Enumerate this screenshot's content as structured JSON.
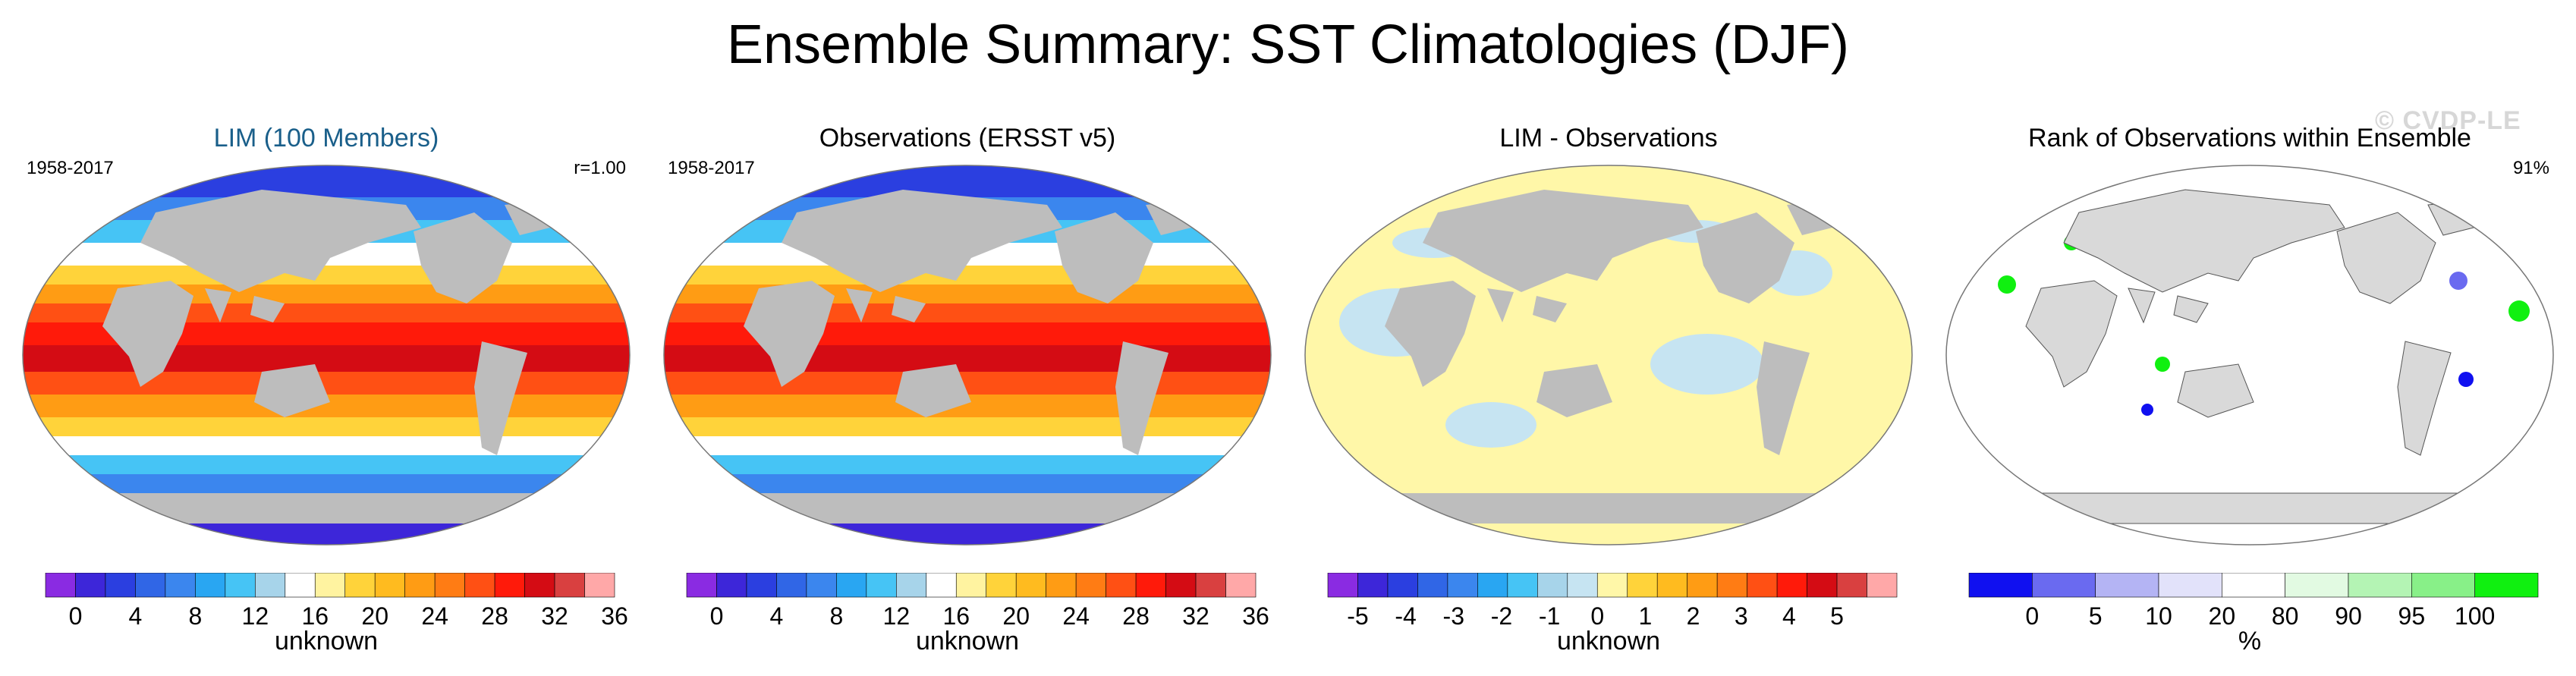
{
  "title": "Ensemble Summary: SST Climatologies (DJF)",
  "watermark": "© CVDP-LE",
  "panels": [
    {
      "title": "LIM (100 Members)",
      "left_label": "1958-2017",
      "right_label": "r=1.00",
      "map_type": "sst",
      "colorbar": {
        "colors": [
          "#8a2be2",
          "#3d26d9",
          "#2b3fe0",
          "#3066e6",
          "#3b86ee",
          "#29a6f2",
          "#46c4f5",
          "#a7d4ea",
          "#ffffff",
          "#fff3a0",
          "#ffd33a",
          "#ffbb1f",
          "#ff9c14",
          "#ff7c14",
          "#ff5014",
          "#ff1a0a",
          "#d40c14",
          "#d94040",
          "#ffa8a8"
        ],
        "tick_labels": [
          "0",
          "4",
          "8",
          "12",
          "16",
          "20",
          "24",
          "28",
          "32",
          "36"
        ],
        "units": "unknown"
      }
    },
    {
      "title": "Observations (ERSST v5)",
      "left_label": "1958-2017",
      "right_label": "",
      "map_type": "sst",
      "colorbar": {
        "colors": [
          "#8a2be2",
          "#3d26d9",
          "#2b3fe0",
          "#3066e6",
          "#3b86ee",
          "#29a6f2",
          "#46c4f5",
          "#a7d4ea",
          "#ffffff",
          "#fff3a0",
          "#ffd33a",
          "#ffbb1f",
          "#ff9c14",
          "#ff7c14",
          "#ff5014",
          "#ff1a0a",
          "#d40c14",
          "#d94040",
          "#ffa8a8"
        ],
        "tick_labels": [
          "0",
          "4",
          "8",
          "12",
          "16",
          "20",
          "24",
          "28",
          "32",
          "36"
        ],
        "units": "unknown"
      }
    },
    {
      "title": "LIM - Observations",
      "left_label": "",
      "right_label": "",
      "map_type": "diff",
      "colorbar": {
        "colors": [
          "#8a2be2",
          "#3d26d9",
          "#2b3fe0",
          "#3066e6",
          "#3b86ee",
          "#29a6f2",
          "#46c4f5",
          "#a7d4ea",
          "#c6e4f2",
          "#fff7a8",
          "#ffd33a",
          "#ffbb1f",
          "#ff9c14",
          "#ff7c14",
          "#ff5014",
          "#ff1a0a",
          "#d40c14",
          "#d94040",
          "#ffa8a8"
        ],
        "tick_labels": [
          "-5",
          "-4",
          "-3",
          "-2",
          "-1",
          "0",
          "1",
          "2",
          "3",
          "4",
          "5"
        ],
        "units": "unknown"
      }
    },
    {
      "title": "Rank of Observations within Ensemble",
      "left_label": "",
      "right_label": "91%",
      "map_type": "rank",
      "colorbar": {
        "colors": [
          "#1010f0",
          "#6a6af0",
          "#b4b4f4",
          "#e2e2fa",
          "#ffffff",
          "#e2fae2",
          "#b4f4b4",
          "#88f088",
          "#10f010"
        ],
        "tick_labels": [
          "0",
          "5",
          "10",
          "20",
          "80",
          "90",
          "95",
          "100"
        ],
        "units": "%"
      }
    }
  ]
}
